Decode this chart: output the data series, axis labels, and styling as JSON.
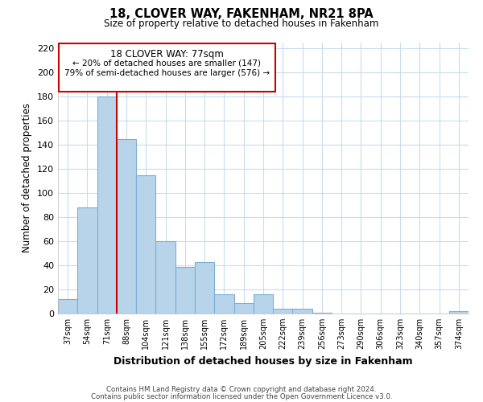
{
  "title": "18, CLOVER WAY, FAKENHAM, NR21 8PA",
  "subtitle": "Size of property relative to detached houses in Fakenham",
  "xlabel": "Distribution of detached houses by size in Fakenham",
  "ylabel": "Number of detached properties",
  "footer_line1": "Contains HM Land Registry data © Crown copyright and database right 2024.",
  "footer_line2": "Contains public sector information licensed under the Open Government Licence v3.0.",
  "categories": [
    "37sqm",
    "54sqm",
    "71sqm",
    "88sqm",
    "104sqm",
    "121sqm",
    "138sqm",
    "155sqm",
    "172sqm",
    "189sqm",
    "205sqm",
    "222sqm",
    "239sqm",
    "256sqm",
    "273sqm",
    "290sqm",
    "306sqm",
    "323sqm",
    "340sqm",
    "357sqm",
    "374sqm"
  ],
  "values": [
    12,
    88,
    180,
    145,
    115,
    60,
    39,
    43,
    16,
    9,
    16,
    4,
    4,
    1,
    0,
    0,
    0,
    0,
    0,
    0,
    2
  ],
  "bar_color": "#b8d4ea",
  "bar_edge_color": "#7aafd4",
  "highlight_line_color": "#cc0000",
  "highlight_line_idx": 2,
  "ylim": [
    0,
    225
  ],
  "yticks": [
    0,
    20,
    40,
    60,
    80,
    100,
    120,
    140,
    160,
    180,
    200,
    220
  ],
  "annotation_title": "18 CLOVER WAY: 77sqm",
  "annotation_line1": "← 20% of detached houses are smaller (147)",
  "annotation_line2": "79% of semi-detached houses are larger (576) →",
  "background_color": "#ffffff",
  "grid_color": "#c8dced"
}
